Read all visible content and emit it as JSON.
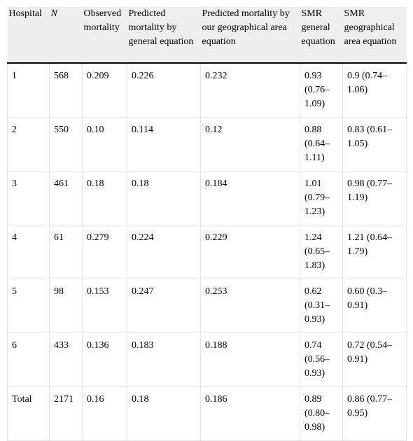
{
  "table": {
    "headers": [
      "Hospital",
      "N",
      "Observed mortality",
      "Predicted mortality by general equation",
      "Predicted mortality by our geographical area equation",
      "SMR general equation",
      "SMR geographical area equation"
    ],
    "rows": [
      [
        "1",
        "568",
        "0.209",
        "0.226",
        "0.232",
        "0.93 (0.76–1.09)",
        "0.9 (0.74–1.06)"
      ],
      [
        "2",
        "550",
        "0.10",
        "0.114",
        "0.12",
        "0.88 (0.64–1.11)",
        "0.83 (0.61–1.05)"
      ],
      [
        "3",
        "461",
        "0.18",
        "0.18",
        "0.184",
        "1.01 (0.79–1.23)",
        "0.98 (0.77–1.19)"
      ],
      [
        "4",
        "61",
        "0.279",
        "0.224",
        "0.229",
        "1.24 (0.65–1.83)",
        "1.21 (0.64–1.79)"
      ],
      [
        "5",
        "98",
        "0.153",
        "0.247",
        "0.253",
        "0.62 (0.31–0.93)",
        "0.60 (0.3–0.91)"
      ],
      [
        "6",
        "433",
        "0.136",
        "0.183",
        "0.188",
        "0.74 (0.56–0.93)",
        "0.72 (0.54–0.91)"
      ],
      [
        "Total",
        "2171",
        "0.16",
        "0.18",
        "0.186",
        "0.89 (0.80–0.98)",
        "0.86 (0.77–0.95)"
      ]
    ]
  }
}
